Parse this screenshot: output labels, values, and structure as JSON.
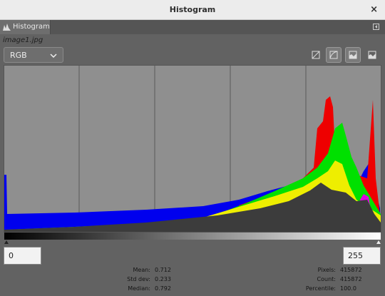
{
  "window": {
    "title": "Histogram",
    "close": "×"
  },
  "tab": "Histogram",
  "image_name": "image1.jpg",
  "channel": "RGB",
  "range": {
    "low": "0",
    "high": "255"
  },
  "stats": {
    "left": [
      {
        "label": "Mean:",
        "value": "0.712"
      },
      {
        "label": "Std dev:",
        "value": "0.233"
      },
      {
        "label": "Median:",
        "value": "0.792"
      }
    ],
    "right": [
      {
        "label": "Pixels:",
        "value": "415872"
      },
      {
        "label": "Count:",
        "value": "415872"
      },
      {
        "label": "Percentile:",
        "value": "100.0"
      }
    ]
  }
}
